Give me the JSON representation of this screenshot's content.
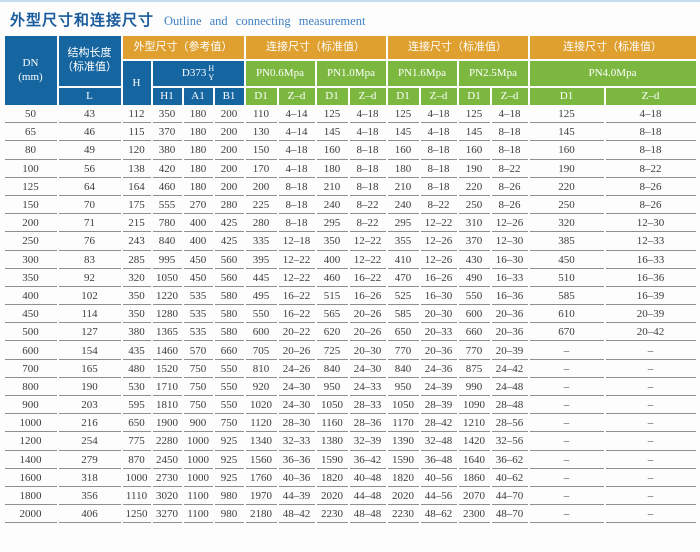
{
  "title": {
    "zh": "外型尺寸和连接尺寸",
    "en": "Outline and connecting measurement"
  },
  "colors": {
    "header_blue": "#1565a0",
    "header_orange": "#dfa02f",
    "header_green": "#7cb840",
    "title_blue": "#1a5c9e",
    "subtitle_blue": "#3f81c2",
    "row_line_gray": "#8f8f8f"
  },
  "header": {
    "dn_line1": "DN",
    "dn_line2": "(mm)",
    "len_line1": "结构长度",
    "len_line2": "（标准值）",
    "l": "L",
    "outline_title": "外型尺寸（参考值）",
    "connect_title": "连接尺寸（标准值）",
    "h": "H",
    "d373_label": "D373",
    "d373_top": "H",
    "d373_bottom": "Y",
    "h1": "H1",
    "a1": "A1",
    "b1": "B1",
    "pn": [
      "PN0.6Mpa",
      "PN1.0Mpa",
      "PN1.6Mpa",
      "PN2.5Mpa",
      "PN4.0Mpa"
    ],
    "d1": "D1",
    "zd": "Z–d"
  },
  "table": {
    "col_names": [
      "cell-dn",
      "cell-l",
      "cell-h",
      "cell-h1",
      "cell-a1",
      "cell-b1",
      "cell-pn06-d1",
      "cell-pn06-zd",
      "cell-pn10-d1",
      "cell-pn10-zd",
      "cell-pn16-d1",
      "cell-pn16-zd",
      "cell-pn25-d1",
      "cell-pn25-zd",
      "cell-pn40-d1",
      "cell-pn40-zd"
    ],
    "rows": [
      [
        "50",
        "43",
        "112",
        "350",
        "180",
        "200",
        "110",
        "4–14",
        "125",
        "4–18",
        "125",
        "4–18",
        "125",
        "4–18",
        "125",
        "4–18"
      ],
      [
        "65",
        "46",
        "115",
        "370",
        "180",
        "200",
        "130",
        "4–14",
        "145",
        "4–18",
        "145",
        "4–18",
        "145",
        "8–18",
        "145",
        "8–18"
      ],
      [
        "80",
        "49",
        "120",
        "380",
        "180",
        "200",
        "150",
        "4–18",
        "160",
        "8–18",
        "160",
        "8–18",
        "160",
        "8–18",
        "160",
        "8–18"
      ],
      [
        "100",
        "56",
        "138",
        "420",
        "180",
        "200",
        "170",
        "4–18",
        "180",
        "8–18",
        "180",
        "8–18",
        "190",
        "8–22",
        "190",
        "8–22"
      ],
      [
        "125",
        "64",
        "164",
        "460",
        "180",
        "200",
        "200",
        "8–18",
        "210",
        "8–18",
        "210",
        "8–18",
        "220",
        "8–26",
        "220",
        "8–26"
      ],
      [
        "150",
        "70",
        "175",
        "555",
        "270",
        "280",
        "225",
        "8–18",
        "240",
        "8–22",
        "240",
        "8–22",
        "250",
        "8–26",
        "250",
        "8–26"
      ],
      [
        "200",
        "71",
        "215",
        "780",
        "400",
        "425",
        "280",
        "8–18",
        "295",
        "8–22",
        "295",
        "12–22",
        "310",
        "12–26",
        "320",
        "12–30"
      ],
      [
        "250",
        "76",
        "243",
        "840",
        "400",
        "425",
        "335",
        "12–18",
        "350",
        "12–22",
        "355",
        "12–26",
        "370",
        "12–30",
        "385",
        "12–33"
      ],
      [
        "300",
        "83",
        "285",
        "995",
        "450",
        "560",
        "395",
        "12–22",
        "400",
        "12–22",
        "410",
        "12–26",
        "430",
        "16–30",
        "450",
        "16–33"
      ],
      [
        "350",
        "92",
        "320",
        "1050",
        "450",
        "560",
        "445",
        "12–22",
        "460",
        "16–22",
        "470",
        "16–26",
        "490",
        "16–33",
        "510",
        "16–36"
      ],
      [
        "400",
        "102",
        "350",
        "1220",
        "535",
        "580",
        "495",
        "16–22",
        "515",
        "16–26",
        "525",
        "16–30",
        "550",
        "16–36",
        "585",
        "16–39"
      ],
      [
        "450",
        "114",
        "350",
        "1280",
        "535",
        "580",
        "550",
        "16–22",
        "565",
        "20–26",
        "585",
        "20–30",
        "600",
        "20–36",
        "610",
        "20–39"
      ],
      [
        "500",
        "127",
        "380",
        "1365",
        "535",
        "580",
        "600",
        "20–22",
        "620",
        "20–26",
        "650",
        "20–33",
        "660",
        "20–36",
        "670",
        "20–42"
      ],
      [
        "600",
        "154",
        "435",
        "1460",
        "570",
        "660",
        "705",
        "20–26",
        "725",
        "20–30",
        "770",
        "20–36",
        "770",
        "20–39",
        "–",
        "–"
      ],
      [
        "700",
        "165",
        "480",
        "1520",
        "750",
        "550",
        "810",
        "24–26",
        "840",
        "24–30",
        "840",
        "24–36",
        "875",
        "24–42",
        "–",
        "–"
      ],
      [
        "800",
        "190",
        "530",
        "1710",
        "750",
        "550",
        "920",
        "24–30",
        "950",
        "24–33",
        "950",
        "24–39",
        "990",
        "24–48",
        "–",
        "–"
      ],
      [
        "900",
        "203",
        "595",
        "1810",
        "750",
        "550",
        "1020",
        "24–30",
        "1050",
        "28–33",
        "1050",
        "28–39",
        "1090",
        "28–48",
        "–",
        "–"
      ],
      [
        "1000",
        "216",
        "650",
        "1900",
        "900",
        "750",
        "1120",
        "28–30",
        "1160",
        "28–36",
        "1170",
        "28–42",
        "1210",
        "28–56",
        "–",
        "–"
      ],
      [
        "1200",
        "254",
        "775",
        "2280",
        "1000",
        "925",
        "1340",
        "32–33",
        "1380",
        "32–39",
        "1390",
        "32–48",
        "1420",
        "32–56",
        "–",
        "–"
      ],
      [
        "1400",
        "279",
        "870",
        "2450",
        "1000",
        "925",
        "1560",
        "36–36",
        "1590",
        "36–42",
        "1590",
        "36–48",
        "1640",
        "36–62",
        "–",
        "–"
      ],
      [
        "1600",
        "318",
        "1000",
        "2730",
        "1000",
        "925",
        "1760",
        "40–36",
        "1820",
        "40–48",
        "1820",
        "40–56",
        "1860",
        "40–62",
        "–",
        "–"
      ],
      [
        "1800",
        "356",
        "1110",
        "3020",
        "1100",
        "980",
        "1970",
        "44–39",
        "2020",
        "44–48",
        "2020",
        "44–56",
        "2070",
        "44–70",
        "–",
        "–"
      ],
      [
        "2000",
        "406",
        "1250",
        "3270",
        "1100",
        "980",
        "2180",
        "48–42",
        "2230",
        "48–48",
        "2230",
        "48–62",
        "2300",
        "48–70",
        "–",
        "–"
      ]
    ]
  }
}
